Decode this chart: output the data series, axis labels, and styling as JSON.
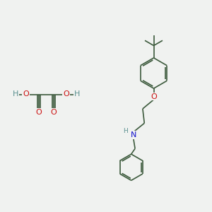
{
  "background_color": "#f0f2f0",
  "bond_color": "#3c5a3c",
  "O_color": "#cc1111",
  "N_color": "#1111cc",
  "H_color": "#5a9090",
  "figsize": [
    3.0,
    3.0
  ],
  "dpi": 100,
  "xlim": [
    0,
    10
  ],
  "ylim": [
    0,
    10
  ]
}
